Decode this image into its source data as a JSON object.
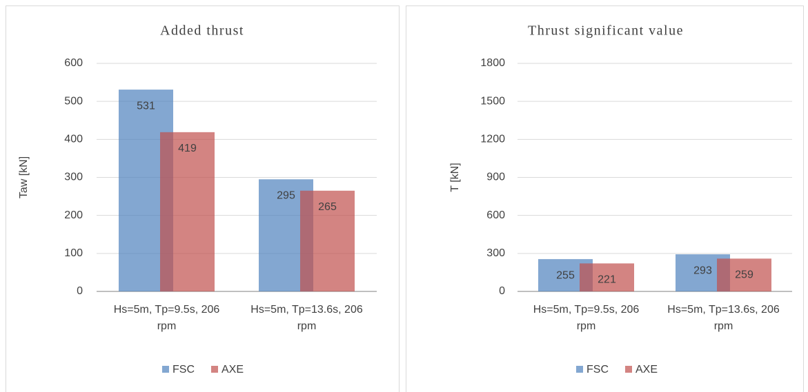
{
  "chart_data": [
    {
      "type": "bar",
      "title": "Added thrust",
      "y_label": "Taw [kN]",
      "categories": [
        "Hs=5m, Tp=9.5s, 206 rpm",
        "Hs=5m, Tp=13.6s, 206 rpm"
      ],
      "series": [
        {
          "name": "FSC",
          "color": "#4f81bd",
          "values": [
            531,
            295
          ]
        },
        {
          "name": "AXE",
          "color": "#c0504d",
          "values": [
            419,
            265
          ]
        }
      ],
      "ylim": [
        0,
        600
      ],
      "yticks": [
        0,
        100,
        200,
        300,
        400,
        500,
        600
      ],
      "grid": true,
      "legend": "bottom"
    },
    {
      "type": "bar",
      "title": "Thrust significant value",
      "y_label": "T [kN]",
      "categories": [
        "Hs=5m, Tp=9.5s, 206 rpm",
        "Hs=5m, Tp=13.6s, 206 rpm"
      ],
      "series": [
        {
          "name": "FSC",
          "color": "#4f81bd",
          "values": [
            255,
            293
          ]
        },
        {
          "name": "AXE",
          "color": "#c0504d",
          "values": [
            221,
            259
          ]
        }
      ],
      "ylim": [
        0,
        1800
      ],
      "yticks": [
        0,
        300,
        600,
        900,
        1200,
        1500,
        1800
      ],
      "grid": true,
      "legend": "bottom"
    }
  ]
}
